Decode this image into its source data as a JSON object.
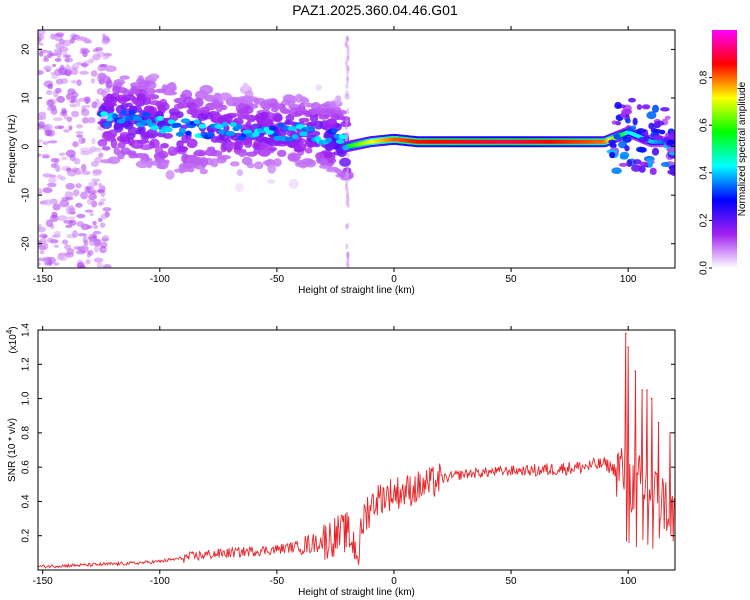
{
  "title": "PAZ1.2025.360.04.46.G01",
  "chart_data": [
    {
      "type": "heatmap",
      "xlabel": "Height of straight line (km)",
      "ylabel": "Frequency (Hz)",
      "xlim": [
        -152,
        120
      ],
      "ylim": [
        -25,
        24
      ],
      "xticks": [
        -150,
        -100,
        -50,
        0,
        50,
        100
      ],
      "yticks": [
        -20,
        -10,
        0,
        10,
        20
      ],
      "colorbar": {
        "label": "Normalized spectral amplitude",
        "range": [
          0,
          1
        ],
        "ticks": [
          "0.0",
          "0.2",
          "0.4",
          "0.6",
          "0.8"
        ],
        "tick_values": [
          0.0,
          0.2,
          0.4,
          0.6,
          0.8
        ],
        "colormap": [
          "#ffffff",
          "#a020f0",
          "#0000ff",
          "#00ffff",
          "#00ff00",
          "#ffff00",
          "#ff0000",
          "#ff00ff"
        ]
      },
      "ridge": [
        {
          "x": -125,
          "freq": 6,
          "amp": 0.3
        },
        {
          "x": -110,
          "freq": 5.5,
          "amp": 0.35
        },
        {
          "x": -95,
          "freq": 4,
          "amp": 0.3
        },
        {
          "x": -80,
          "freq": 3.5,
          "amp": 0.3
        },
        {
          "x": -60,
          "freq": 3,
          "amp": 0.3
        },
        {
          "x": -40,
          "freq": 3,
          "amp": 0.3
        },
        {
          "x": -25,
          "freq": 2,
          "amp": 0.4
        },
        {
          "x": -20,
          "freq": 0,
          "amp": 0.55
        },
        {
          "x": -10,
          "freq": 1,
          "amp": 0.7
        },
        {
          "x": 0,
          "freq": 1.5,
          "amp": 0.8
        },
        {
          "x": 10,
          "freq": 1,
          "amp": 0.85
        },
        {
          "x": 50,
          "freq": 1,
          "amp": 0.9
        },
        {
          "x": 90,
          "freq": 1,
          "amp": 0.8
        },
        {
          "x": 100,
          "freq": 3,
          "amp": 0.45
        },
        {
          "x": 110,
          "freq": 1,
          "amp": 0.4
        },
        {
          "x": 120,
          "freq": 1,
          "amp": 0.3
        }
      ]
    },
    {
      "type": "line",
      "xlabel": "Height of straight line (km)",
      "ylabel": "SNR (10 * v/v)",
      "scale_label": "(x10",
      "scale_exponent": "4",
      "xlim": [
        -152,
        120
      ],
      "ylim": [
        0,
        1.4
      ],
      "xticks": [
        -150,
        -100,
        -50,
        0,
        50,
        100
      ],
      "yticks": [
        0.2,
        0.4,
        0.6,
        0.8,
        1.0,
        1.2,
        1.4
      ],
      "series": [
        {
          "name": "SNR",
          "color": "#e8262a",
          "x": [
            -152,
            -130,
            -110,
            -100,
            -90,
            -80,
            -70,
            -60,
            -50,
            -40,
            -30,
            -25,
            -20,
            -15,
            -13,
            -10,
            -5,
            0,
            5,
            10,
            15,
            20,
            30,
            40,
            50,
            60,
            70,
            80,
            90,
            95,
            97,
            100,
            105,
            110,
            115,
            120
          ],
          "y": [
            0.02,
            0.03,
            0.04,
            0.05,
            0.07,
            0.09,
            0.1,
            0.11,
            0.12,
            0.14,
            0.17,
            0.2,
            0.22,
            0.1,
            0.3,
            0.38,
            0.43,
            0.45,
            0.46,
            0.48,
            0.5,
            0.53,
            0.56,
            0.57,
            0.58,
            0.58,
            0.59,
            0.6,
            0.62,
            0.58,
            0.6,
            0.5,
            0.5,
            0.45,
            0.4,
            0.3
          ]
        }
      ],
      "spikes": [
        {
          "x": 99,
          "y": 1.38
        },
        {
          "x": 100,
          "y": 1.3
        },
        {
          "x": 103,
          "y": 1.16
        },
        {
          "x": 106,
          "y": 1.05
        },
        {
          "x": 108,
          "y": 1.05
        },
        {
          "x": 110,
          "y": 1.0
        },
        {
          "x": 113,
          "y": 0.86
        },
        {
          "x": 118,
          "y": 0.8
        }
      ]
    }
  ]
}
